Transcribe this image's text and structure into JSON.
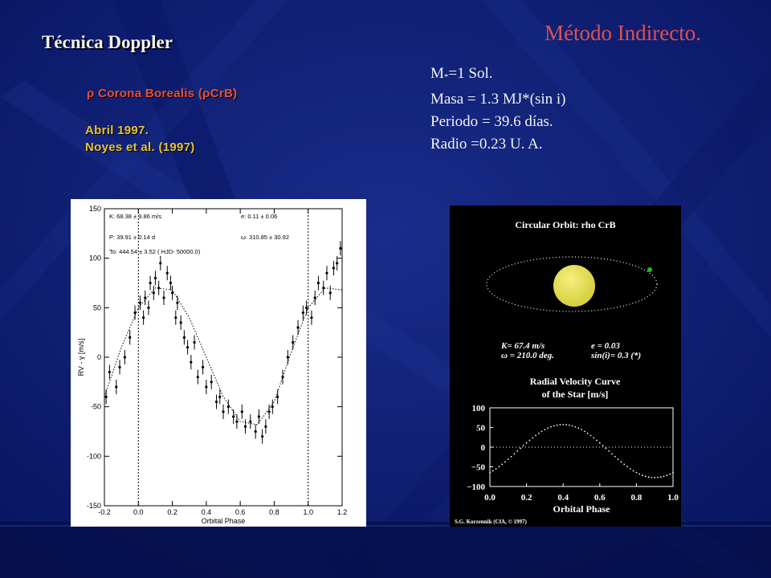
{
  "slide": {
    "title_left": "Técnica Doppler",
    "title_right": "Método Indirecto.",
    "subtitle_symbol": "ρ",
    "subtitle_text": " Corona Borealis (ρCrB)",
    "reference_line1": "Abril 1997.",
    "reference_line2": "Noyes et al. (1997)",
    "params": {
      "mass_star_prefix": "M",
      "mass_star_sub": "*",
      "mass_star_rest": "=1 Sol.",
      "planet_mass": "Masa = 1.3 MJ*(sin i)",
      "period": "Periodo = 39.6 días.",
      "radius": "Radio =0.23 U. A."
    },
    "colors": {
      "background": "#0a1a6e",
      "title_right": "#e05050",
      "subtitle": "#e8503a",
      "reference": "#e8c23a"
    }
  },
  "chart_data": [
    {
      "type": "scatter",
      "xlabel": "Orbital Phase",
      "ylabel": "RV - γ [m/s]",
      "xlim": [
        -0.2,
        1.2
      ],
      "ylim": [
        -150,
        150
      ],
      "x_ticks": [
        "-0.2",
        "0.0",
        "0.2",
        "0.4",
        "0.6",
        "0.8",
        "1.0",
        "1.2"
      ],
      "y_ticks": [
        "150",
        "100",
        "50",
        "0",
        "-50",
        "-100",
        "-150"
      ],
      "annotations": [
        "K: 68.38 ± 3.86 m/s",
        "e: 0.11 ± 0.06",
        "P: 39.91 ± 0.14 d",
        "ω: 310.85 ± 30.92",
        "To: 444.54 ± 3.52 ( HJD- 50000.0)"
      ],
      "vertical_lines_at": [
        0.0,
        1.0
      ],
      "model_curve": {
        "x": [
          -0.2,
          -0.1,
          0.0,
          0.1,
          0.2,
          0.3,
          0.4,
          0.5,
          0.6,
          0.7,
          0.8,
          0.9,
          1.0,
          1.1,
          1.2
        ],
        "y": [
          -40,
          10,
          50,
          70,
          68,
          40,
          0,
          -40,
          -65,
          -68,
          -45,
          5,
          50,
          70,
          68
        ]
      },
      "points": {
        "x": [
          -0.19,
          -0.17,
          -0.13,
          -0.11,
          -0.08,
          -0.05,
          -0.02,
          0.01,
          0.03,
          0.04,
          0.06,
          0.07,
          0.09,
          0.1,
          0.12,
          0.13,
          0.15,
          0.17,
          0.19,
          0.2,
          0.22,
          0.23,
          0.25,
          0.27,
          0.29,
          0.31,
          0.33,
          0.35,
          0.38,
          0.4,
          0.43,
          0.46,
          0.48,
          0.5,
          0.53,
          0.56,
          0.58,
          0.61,
          0.63,
          0.66,
          0.69,
          0.71,
          0.73,
          0.75,
          0.77,
          0.79,
          0.82,
          0.85,
          0.88,
          0.91,
          0.94,
          0.97,
          0.99,
          1.02,
          1.04,
          1.06,
          1.09,
          1.11,
          1.13,
          1.15,
          1.17,
          1.19
        ],
        "y": [
          -40,
          -15,
          -30,
          -10,
          0,
          20,
          45,
          55,
          40,
          60,
          50,
          75,
          65,
          80,
          70,
          95,
          60,
          85,
          75,
          65,
          40,
          55,
          35,
          20,
          10,
          -5,
          15,
          -20,
          -10,
          -30,
          -25,
          -45,
          -40,
          -55,
          -50,
          -60,
          -65,
          -55,
          -70,
          -65,
          -75,
          -60,
          -80,
          -70,
          -55,
          -50,
          -40,
          -20,
          0,
          15,
          30,
          45,
          50,
          40,
          60,
          75,
          70,
          85,
          65,
          90,
          95,
          110
        ]
      }
    },
    {
      "type": "line",
      "title": "Circular Orbit: rho CrB",
      "subtitle_line1": "Radial Velocity Curve",
      "subtitle_line2": "of the Star [m/s]",
      "xlabel": "Orbital Phase",
      "xlim": [
        0.0,
        1.0
      ],
      "ylim": [
        -100,
        100
      ],
      "x_ticks": [
        "0.0",
        "0.2",
        "0.4",
        "0.6",
        "0.8",
        "1.0"
      ],
      "y_ticks": [
        "100",
        "50",
        "0",
        "−50",
        "−100"
      ],
      "params_line1_left": "K= 67.4 m/s",
      "params_line1_right": "e = 0.03",
      "params_line2_left": "ω = 210.0 deg.",
      "params_line2_right": "sin(i)= 0.3 (*)",
      "credit": "S.G. Korzennik (CfA, © 1997)",
      "star_color": "#d8d040",
      "planet_color": "#20c020",
      "curve_amplitude": 67.4,
      "curve_phase_of_max": 0.4,
      "curve_offset": -10
    }
  ]
}
